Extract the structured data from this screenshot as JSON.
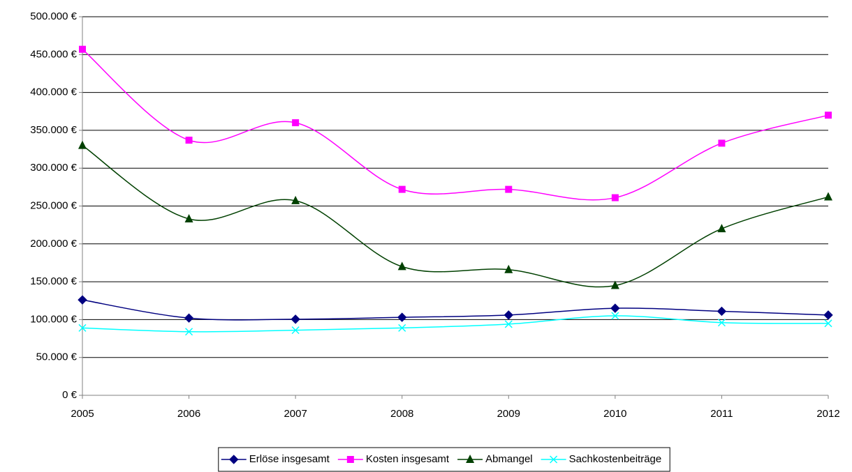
{
  "chart_data": {
    "type": "line",
    "categories": [
      "2005",
      "2006",
      "2007",
      "2008",
      "2009",
      "2010",
      "2011",
      "2012"
    ],
    "series": [
      {
        "name": "Erlöse insgesamt",
        "color": "#000080",
        "marker": "diamond",
        "values": [
          126000,
          102000,
          100500,
          103000,
          106000,
          115000,
          111000,
          106000
        ]
      },
      {
        "name": "Kosten insgesamt",
        "color": "#ff00ff",
        "marker": "square",
        "values": [
          457000,
          337000,
          360000,
          272000,
          272000,
          261000,
          333000,
          370000
        ]
      },
      {
        "name": "Abmangel",
        "color": "#004000",
        "marker": "triangle",
        "values": [
          330000,
          233000,
          257000,
          170000,
          166000,
          145000,
          220000,
          262000
        ]
      },
      {
        "name": "Sachkostenbeiträge",
        "color": "#00ffff",
        "marker": "x",
        "values": [
          89000,
          84000,
          86000,
          89000,
          94000,
          105000,
          96000,
          95000
        ]
      }
    ],
    "ylim": [
      0,
      500000
    ],
    "yticks": [
      {
        "value": 0,
        "label": "0 €"
      },
      {
        "value": 50000,
        "label": "50.000 €"
      },
      {
        "value": 100000,
        "label": "100.000 €"
      },
      {
        "value": 150000,
        "label": "150.000 €"
      },
      {
        "value": 200000,
        "label": "200.000 €"
      },
      {
        "value": 250000,
        "label": "250.000 €"
      },
      {
        "value": 300000,
        "label": "300.000 €"
      },
      {
        "value": 350000,
        "label": "350.000 €"
      },
      {
        "value": 400000,
        "label": "400.000 €"
      },
      {
        "value": 450000,
        "label": "450.000 €"
      },
      {
        "value": 500000,
        "label": "500.000 €"
      }
    ],
    "grid": true,
    "smooth": true,
    "legend": "bottom"
  }
}
